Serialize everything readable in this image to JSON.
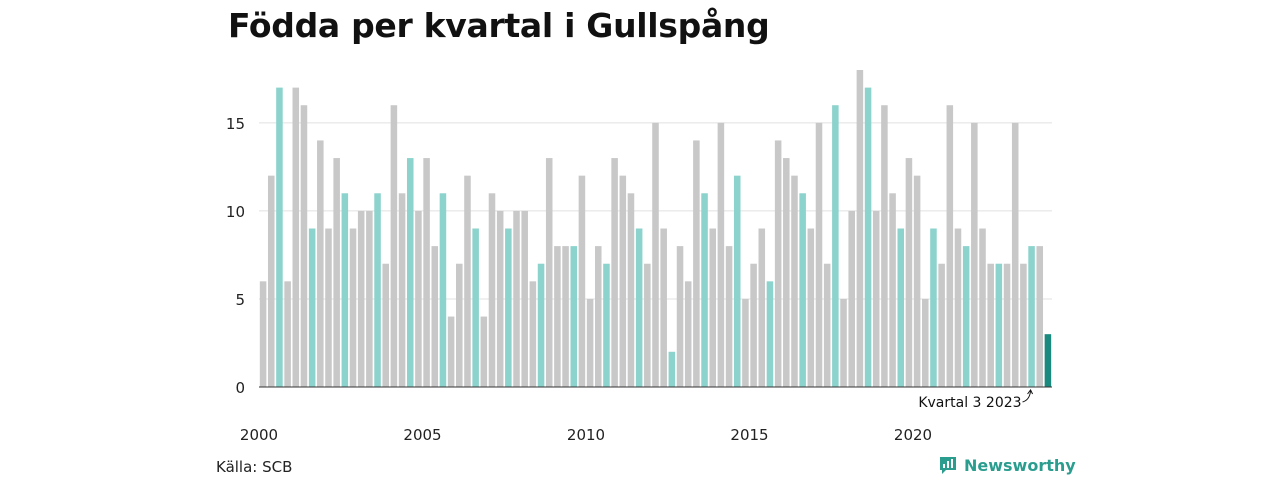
{
  "title": "Födda per kvartal i Gullspång",
  "source": "Källa: SCB",
  "brand": {
    "name": "Newsworthy",
    "icon": "newsworthy-logo-icon"
  },
  "colors": {
    "q3": "#8dd3cd",
    "other": "#c8c8c8",
    "latest": "#1b8a7e",
    "grid": "#e0e0e0",
    "axis": "#333333"
  },
  "chart_data": {
    "type": "bar",
    "title": "Födda per kvartal i Gullspång",
    "xlabel": "",
    "ylabel": "",
    "ylim": [
      0,
      18
    ],
    "yticks": [
      0,
      5,
      10,
      15
    ],
    "xticks": [
      "2000",
      "2005",
      "2010",
      "2015",
      "2020"
    ],
    "grid": true,
    "start_year": 2000,
    "values": [
      6,
      12,
      17,
      6,
      17,
      16,
      9,
      14,
      9,
      13,
      11,
      9,
      10,
      10,
      11,
      7,
      16,
      11,
      13,
      10,
      13,
      8,
      11,
      4,
      7,
      12,
      9,
      4,
      11,
      10,
      9,
      10,
      10,
      6,
      7,
      13,
      8,
      8,
      8,
      12,
      5,
      8,
      7,
      13,
      12,
      11,
      9,
      7,
      15,
      9,
      2,
      8,
      6,
      14,
      11,
      9,
      15,
      8,
      12,
      5,
      7,
      9,
      6,
      14,
      13,
      12,
      11,
      9,
      15,
      7,
      16,
      5,
      10,
      18,
      17,
      10,
      16,
      11,
      9,
      13,
      12,
      5,
      9,
      7,
      16,
      9,
      8,
      15,
      9,
      7,
      7,
      7,
      15,
      7,
      8,
      8,
      3
    ],
    "annotation": {
      "text": "Kvartal 3 2023",
      "index": 94
    }
  }
}
